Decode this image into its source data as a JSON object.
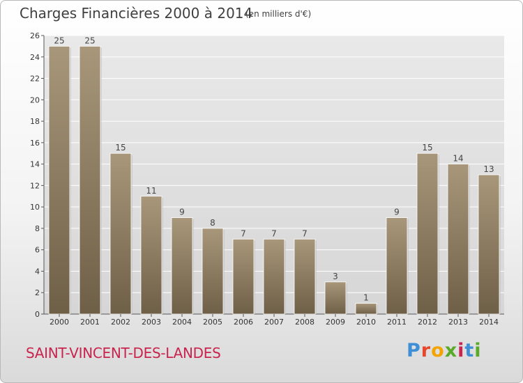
{
  "chart_data": {
    "type": "bar",
    "title": "Charges Financières 2000 à 2014",
    "subtitle": "(en milliers d'€)",
    "categories": [
      "2000",
      "2001",
      "2002",
      "2003",
      "2004",
      "2005",
      "2006",
      "2007",
      "2008",
      "2009",
      "2010",
      "2011",
      "2012",
      "2013",
      "2014"
    ],
    "values": [
      25,
      25,
      15,
      11,
      9,
      8,
      7,
      7,
      7,
      3,
      1,
      9,
      15,
      14,
      13
    ],
    "ylim": [
      0,
      26
    ],
    "yticks": [
      0,
      2,
      4,
      6,
      8,
      10,
      12,
      14,
      16,
      18,
      20,
      22,
      24,
      26
    ],
    "grid": true,
    "legend": "none",
    "bar_color": "#8c7a5e"
  },
  "footer": {
    "town": "SAINT-VINCENT-DES-LANDES",
    "brand": "Proxiti",
    "brand_colors": [
      "#3f8fd6",
      "#e8472a",
      "#f3a400",
      "#5aaa2a",
      "#c8244e",
      "#3f8fd6",
      "#5aaa2a"
    ]
  }
}
